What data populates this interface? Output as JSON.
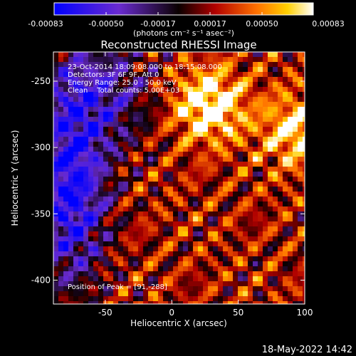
{
  "colorbar": {
    "ticks": [
      "-0.00083",
      "-0.00050",
      "-0.00017",
      "0.00017",
      "0.00050",
      "0.00083"
    ],
    "unit_label": "(photons cm⁻² s⁻¹ asec⁻²)"
  },
  "chart_data": {
    "type": "heatmap",
    "title": "Reconstructed RHESSI Image",
    "xlabel": "Heliocentric X (arcsec)",
    "ylabel": "Heliocentric Y (arcsec)",
    "xlim": [
      -89,
      100
    ],
    "ylim": [
      -418,
      -228
    ],
    "x_ticks": [
      -50,
      0,
      50,
      100
    ],
    "y_ticks": [
      -250,
      -300,
      -350,
      -400
    ],
    "color_range": [
      -0.00083,
      0.00083
    ],
    "colormap": "blue-purple-black-red-yellow-white",
    "annotations": [
      "23-Oct-2014 18:09:08.000 to 18:15:08.000",
      "Detectors: 3F 6F 9F, Att 0",
      "Energy Range: 25.0 - 50.0 keV",
      "Clean    Total counts: 5.00E+03"
    ],
    "peak_label": "Position of Peak = [91,-288]",
    "peak_position": [
      91,
      -288
    ]
  },
  "footer": {
    "timestamp": "18-May-2022 14:42"
  }
}
